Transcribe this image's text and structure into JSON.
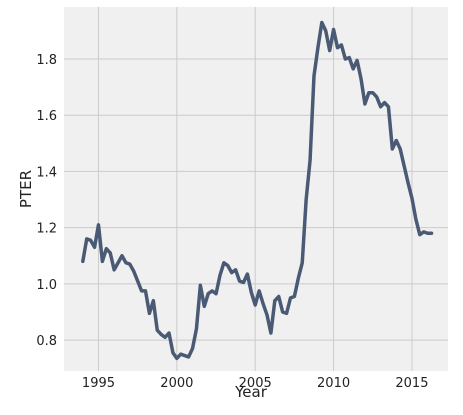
{
  "chart_data": {
    "type": "line",
    "xlabel": "Year",
    "ylabel": "PTER",
    "xlim": [
      1992.8,
      2017.3
    ],
    "ylim": [
      0.69,
      1.985
    ],
    "x_ticks": [
      1995,
      2000,
      2005,
      2010,
      2015
    ],
    "y_ticks": [
      0.8,
      1.0,
      1.2,
      1.4,
      1.6,
      1.8
    ],
    "x_tick_labels": [
      "1995",
      "2000",
      "2005",
      "2010",
      "2015"
    ],
    "y_tick_labels": [
      "0.8",
      "1.0",
      "1.2",
      "1.4",
      "1.6",
      "1.8"
    ],
    "grid": true,
    "colors": {
      "line": "#4a5a75",
      "plot_bg": "#f0f0f0",
      "grid": "#cbcbcb"
    },
    "series": [
      {
        "x": [
          1994.0,
          1994.25,
          1994.5,
          1994.75,
          1995.0,
          1995.25,
          1995.5,
          1995.75,
          1996.0,
          1996.25,
          1996.5,
          1996.75,
          1997.0,
          1997.25,
          1997.5,
          1997.75,
          1998.0,
          1998.25,
          1998.5,
          1998.75,
          1999.0,
          1999.25,
          1999.5,
          1999.75,
          2000.0,
          2000.25,
          2000.5,
          2000.75,
          2001.0,
          2001.25,
          2001.5,
          2001.75,
          2002.0,
          2002.25,
          2002.5,
          2002.75,
          2003.0,
          2003.25,
          2003.5,
          2003.75,
          2004.0,
          2004.25,
          2004.5,
          2004.75,
          2005.0,
          2005.25,
          2005.5,
          2005.75,
          2006.0,
          2006.25,
          2006.5,
          2006.75,
          2007.0,
          2007.25,
          2007.5,
          2007.75,
          2008.0,
          2008.25,
          2008.5,
          2008.75,
          2009.0,
          2009.25,
          2009.5,
          2009.75,
          2010.0,
          2010.25,
          2010.5,
          2010.75,
          2011.0,
          2011.25,
          2011.5,
          2011.75,
          2012.0,
          2012.25,
          2012.5,
          2012.75,
          2013.0,
          2013.25,
          2013.5,
          2013.75,
          2014.0,
          2014.25,
          2014.5,
          2014.75,
          2015.0,
          2015.25,
          2015.5,
          2015.75,
          2016.0,
          2016.25
        ],
        "y": [
          1.08,
          1.16,
          1.155,
          1.13,
          1.21,
          1.08,
          1.125,
          1.11,
          1.05,
          1.075,
          1.1,
          1.075,
          1.07,
          1.045,
          1.01,
          0.975,
          0.975,
          0.895,
          0.94,
          0.835,
          0.82,
          0.81,
          0.825,
          0.755,
          0.735,
          0.75,
          0.745,
          0.74,
          0.77,
          0.84,
          0.995,
          0.92,
          0.965,
          0.975,
          0.965,
          1.03,
          1.075,
          1.065,
          1.04,
          1.05,
          1.01,
          1.005,
          1.035,
          0.97,
          0.925,
          0.975,
          0.93,
          0.89,
          0.825,
          0.94,
          0.955,
          0.9,
          0.895,
          0.95,
          0.955,
          1.02,
          1.075,
          1.3,
          1.44,
          1.74,
          1.84,
          1.93,
          1.9,
          1.83,
          1.905,
          1.84,
          1.85,
          1.8,
          1.805,
          1.765,
          1.795,
          1.73,
          1.64,
          1.68,
          1.68,
          1.665,
          1.63,
          1.645,
          1.63,
          1.48,
          1.51,
          1.48,
          1.42,
          1.36,
          1.305,
          1.23,
          1.175,
          1.185,
          1.18,
          1.18
        ]
      }
    ]
  }
}
